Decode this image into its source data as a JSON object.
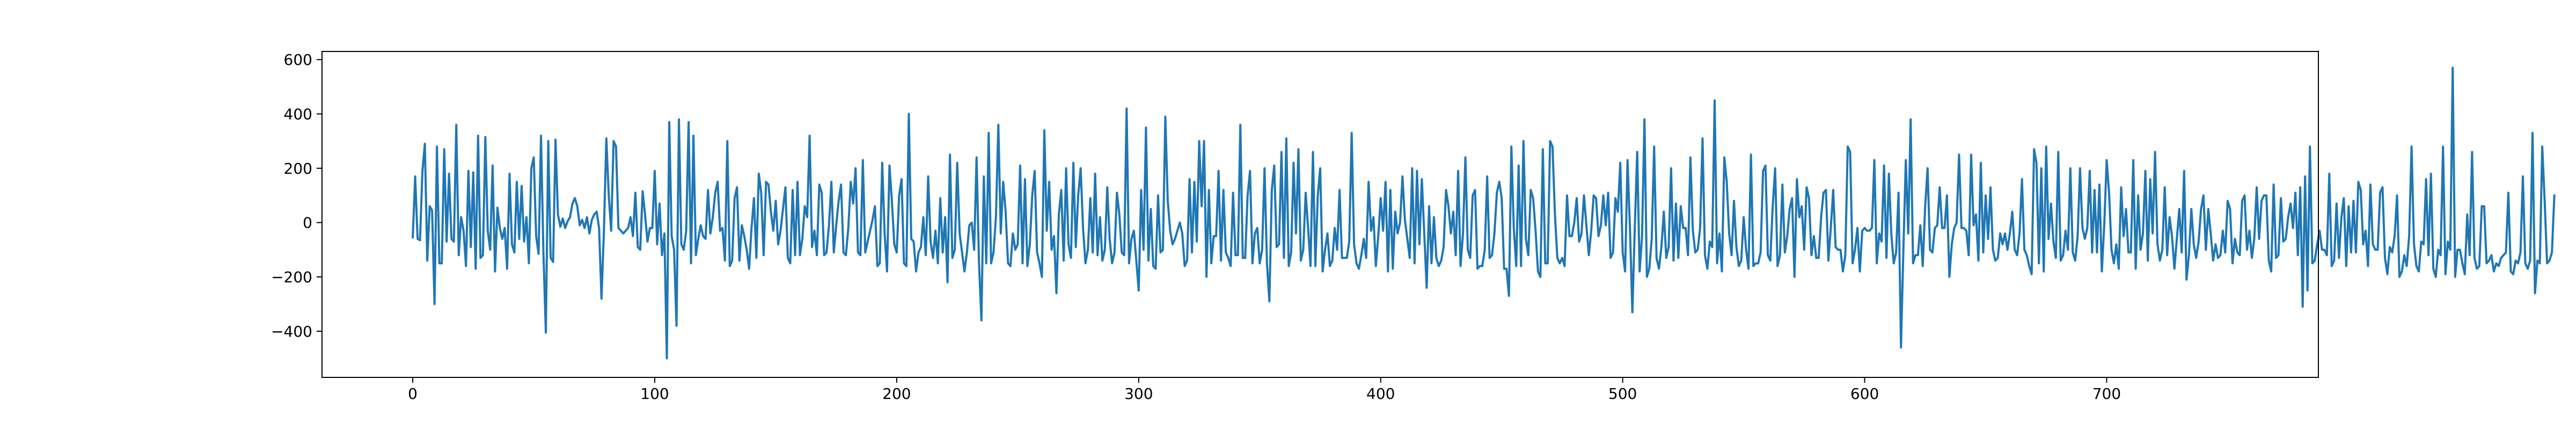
{
  "chart_data": {
    "type": "line",
    "title": "",
    "xlabel": "",
    "ylabel": "",
    "xlim": [
      -37.5,
      787.5
    ],
    "ylim": [
      -570,
      630
    ],
    "xticks": [
      0,
      100,
      200,
      300,
      400,
      500,
      600,
      700
    ],
    "yticks": [
      -400,
      -200,
      0,
      200,
      400,
      600
    ],
    "grid": false,
    "legend": "none",
    "line_color": "#1f77b4",
    "series": [
      {
        "x_start": 0,
        "x_step": 1,
        "y": [
          -55,
          170,
          -60,
          -65,
          190,
          290,
          -140,
          60,
          45,
          -300,
          280,
          -150,
          -150,
          270,
          -70,
          180,
          -60,
          -70,
          360,
          -120,
          20,
          -30,
          -160,
          190,
          -90,
          185,
          -170,
          320,
          -130,
          -120,
          315,
          -30,
          -100,
          210,
          -180,
          55,
          -20,
          -60,
          -20,
          -170,
          180,
          -80,
          -110,
          150,
          -60,
          135,
          -70,
          20,
          -150,
          200,
          240,
          -50,
          -115,
          320,
          -110,
          -405,
          300,
          -130,
          -145,
          305,
          30,
          -15,
          15,
          -20,
          5,
          20,
          70,
          90,
          60,
          -10,
          10,
          -20,
          20,
          -40,
          10,
          30,
          40,
          -20,
          -280,
          -30,
          310,
          100,
          -30,
          300,
          280,
          -20,
          -30,
          -40,
          -30,
          -20,
          20,
          -50,
          110,
          -90,
          -100,
          115,
          30,
          -70,
          -20,
          -20,
          190,
          -80,
          70,
          -120,
          -40,
          -500,
          370,
          -50,
          -100,
          -380,
          380,
          -80,
          -100,
          -30,
          370,
          -150,
          320,
          -120,
          -60,
          -10,
          -50,
          -60,
          120,
          -40,
          20,
          110,
          150,
          -30,
          -20,
          -140,
          300,
          -160,
          -140,
          90,
          130,
          -140,
          -10,
          -50,
          -100,
          -170,
          -20,
          90,
          -130,
          180,
          110,
          -120,
          150,
          140,
          40,
          -30,
          80,
          -80,
          -30,
          50,
          130,
          -130,
          -150,
          120,
          -120,
          150,
          -120,
          -60,
          60,
          20,
          320,
          -90,
          -30,
          -120,
          140,
          110,
          -120,
          -110,
          -10,
          150,
          -110,
          -10,
          80,
          140,
          -110,
          -120,
          -20,
          150,
          70,
          200,
          -110,
          -120,
          230,
          -110,
          -70,
          -30,
          10,
          60,
          -160,
          -150,
          220,
          -40,
          -180,
          210,
          80,
          -80,
          -110,
          100,
          160,
          -150,
          -160,
          400,
          -60,
          -70,
          -180,
          -110,
          -90,
          20,
          -120,
          170,
          -70,
          -130,
          -30,
          -150,
          90,
          -110,
          20,
          -220,
          250,
          -130,
          -100,
          220,
          -40,
          -110,
          -180,
          -110,
          -10,
          0,
          -100,
          240,
          -150,
          -360,
          170,
          -150,
          330,
          -150,
          -110,
          20,
          360,
          -40,
          150,
          40,
          -150,
          -160,
          -40,
          -100,
          -80,
          210,
          -150,
          160,
          -160,
          -80,
          100,
          190,
          -110,
          -150,
          -200,
          340,
          -30,
          150,
          -100,
          -50,
          -260,
          30,
          120,
          -140,
          200,
          -80,
          -130,
          220,
          -90,
          100,
          200,
          -20,
          -150,
          -100,
          90,
          -110,
          180,
          -120,
          20,
          -140,
          -100,
          130,
          -60,
          -150,
          -110,
          110,
          30,
          -110,
          -120,
          420,
          -150,
          -60,
          -30,
          -140,
          -250,
          120,
          -100,
          350,
          -140,
          50,
          -160,
          -170,
          100,
          -110,
          -100,
          390,
          80,
          -30,
          -80,
          -60,
          -30,
          0,
          -40,
          -160,
          -140,
          160,
          -110,
          150,
          -70,
          300,
          60,
          300,
          -200,
          120,
          -150,
          -50,
          -50,
          190,
          -140,
          120,
          -110,
          -130,
          -160,
          110,
          -120,
          -120,
          360,
          -130,
          -130,
          100,
          190,
          -150,
          -40,
          -20,
          -150,
          -100,
          200,
          -150,
          -290,
          120,
          210,
          -90,
          -80,
          260,
          -130,
          310,
          -160,
          -110,
          220,
          -40,
          270,
          -140,
          -100,
          110,
          -20,
          -160,
          260,
          -160,
          100,
          200,
          -180,
          -100,
          -40,
          -160,
          -140,
          -20,
          -100,
          120,
          -130,
          -130,
          -130,
          -70,
          330,
          -80,
          -150,
          -170,
          -120,
          -60,
          -130,
          150,
          -30,
          20,
          -160,
          -50,
          90,
          -30,
          150,
          -180,
          120,
          -170,
          40,
          -40,
          0,
          170,
          10,
          -60,
          -130,
          200,
          -150,
          190,
          -80,
          160,
          -40,
          -240,
          60,
          -150,
          20,
          -130,
          -160,
          -140,
          -90,
          120,
          60,
          -40,
          40,
          -120,
          190,
          -160,
          -40,
          240,
          -100,
          -130,
          100,
          120,
          -170,
          -160,
          -160,
          -100,
          170,
          -130,
          -120,
          -40,
          110,
          150,
          90,
          -170,
          -170,
          -270,
          280,
          -20,
          -160,
          210,
          -160,
          300,
          -60,
          -120,
          120,
          90,
          -30,
          -180,
          -200,
          270,
          -150,
          -150,
          300,
          280,
          30,
          -130,
          -150,
          -130,
          -160,
          100,
          -50,
          -50,
          0,
          90,
          -70,
          -40,
          100,
          -10,
          -120,
          -30,
          100,
          90,
          -50,
          -10,
          100,
          -10,
          110,
          -130,
          -110,
          90,
          40,
          220,
          -110,
          -180,
          230,
          -20,
          -330,
          -20,
          260,
          -180,
          -50,
          380,
          -200,
          -170,
          -60,
          280,
          -130,
          -170,
          -90,
          40,
          -130,
          -90,
          200,
          -140,
          70,
          -130,
          60,
          -20,
          -20,
          -120,
          240,
          -30,
          -110,
          -100,
          -20,
          310,
          -120,
          -170,
          -70,
          -90,
          450,
          -150,
          -40,
          -180,
          240,
          150,
          -40,
          -120,
          80,
          -90,
          -160,
          -140,
          20,
          -100,
          -170,
          250,
          -160,
          -150,
          -150,
          -110,
          190,
          210,
          -120,
          -140,
          60,
          200,
          -160,
          -120,
          140,
          -110,
          -50,
          50,
          90,
          -200,
          160,
          20,
          60,
          -100,
          130,
          90,
          -120,
          -50,
          -130,
          -130,
          20,
          110,
          120,
          -140,
          -20,
          120,
          -90,
          -100,
          -100,
          -180,
          -120,
          280,
          260,
          -150,
          -100,
          -20,
          -180,
          -30,
          -20,
          -30,
          -30,
          -20,
          230,
          -150,
          -40,
          -70,
          210,
          -130,
          180,
          -40,
          -150,
          -110,
          110,
          -460,
          -100,
          230,
          -40,
          380,
          -150,
          -120,
          -120,
          -10,
          -160,
          60,
          200,
          -100,
          -110,
          -20,
          -10,
          130,
          -20,
          -20,
          100,
          -200,
          -80,
          -20,
          0,
          250,
          -20,
          -20,
          -30,
          -120,
          250,
          -10,
          30,
          -140,
          220,
          -110,
          100,
          -60,
          130,
          -100,
          -140,
          -130,
          -40,
          -80,
          -40,
          -100,
          -40,
          40,
          -100,
          -120,
          -40,
          160,
          -100,
          -120,
          -160,
          -190,
          270,
          220,
          -150,
          200,
          -180,
          280,
          -60,
          70,
          -70,
          -130,
          260,
          -140,
          -120,
          -30,
          -100,
          200,
          -110,
          -140,
          -50,
          200,
          -20,
          -60,
          -20,
          190,
          -110,
          120,
          -110,
          140,
          -180,
          -10,
          230,
          110,
          -100,
          -150,
          -80,
          -170,
          130,
          -50,
          50,
          -110,
          -110,
          230,
          -170,
          100,
          -100,
          -40,
          190,
          -140,
          160,
          -40,
          260,
          -80,
          -140,
          -100,
          130,
          -120,
          20,
          -50,
          -170,
          -60,
          50,
          -110,
          190,
          -210,
          -120,
          50,
          -80,
          -130,
          -70,
          50,
          100,
          -100,
          50,
          -40,
          -140,
          -80,
          -130,
          -120,
          -30,
          -110,
          80,
          50,
          -150,
          -60,
          -110,
          -120,
          80,
          100,
          -100,
          -30,
          -130,
          -60,
          130,
          -60,
          80,
          100,
          100,
          -140,
          -180,
          140,
          -130,
          -120,
          90,
          -70,
          -60,
          20,
          70,
          -20,
          110,
          -120,
          130,
          -310,
          170,
          -250,
          280,
          -150,
          -140,
          -80,
          -30,
          -100,
          -100,
          -120,
          180,
          -160,
          -140,
          70,
          -130,
          20,
          90,
          -160,
          60,
          -110,
          80,
          -110,
          150,
          120,
          -80,
          -30,
          -160,
          140,
          -80,
          -100,
          -100,
          110,
          130,
          -130,
          -190,
          -90,
          -110,
          -50,
          100,
          -200,
          -180,
          -120,
          -160,
          -50,
          280,
          -80,
          -160,
          -180,
          -70,
          -80,
          160,
          -120,
          180,
          -170,
          -200,
          -100,
          -120,
          280,
          -190,
          -70,
          -100,
          570,
          -200,
          -100,
          -100,
          -150,
          -190,
          30,
          -120,
          260,
          -130,
          -170,
          -160,
          60,
          60,
          -150,
          -140,
          -120,
          -180,
          -150,
          -160,
          -130,
          -120,
          -110,
          110,
          -180,
          -190,
          -140,
          -150,
          -110,
          170,
          -150,
          -170,
          -140,
          330,
          -260,
          -140,
          -150,
          280,
          80,
          -150,
          -140,
          -110,
          100
        ]
      }
    ]
  }
}
